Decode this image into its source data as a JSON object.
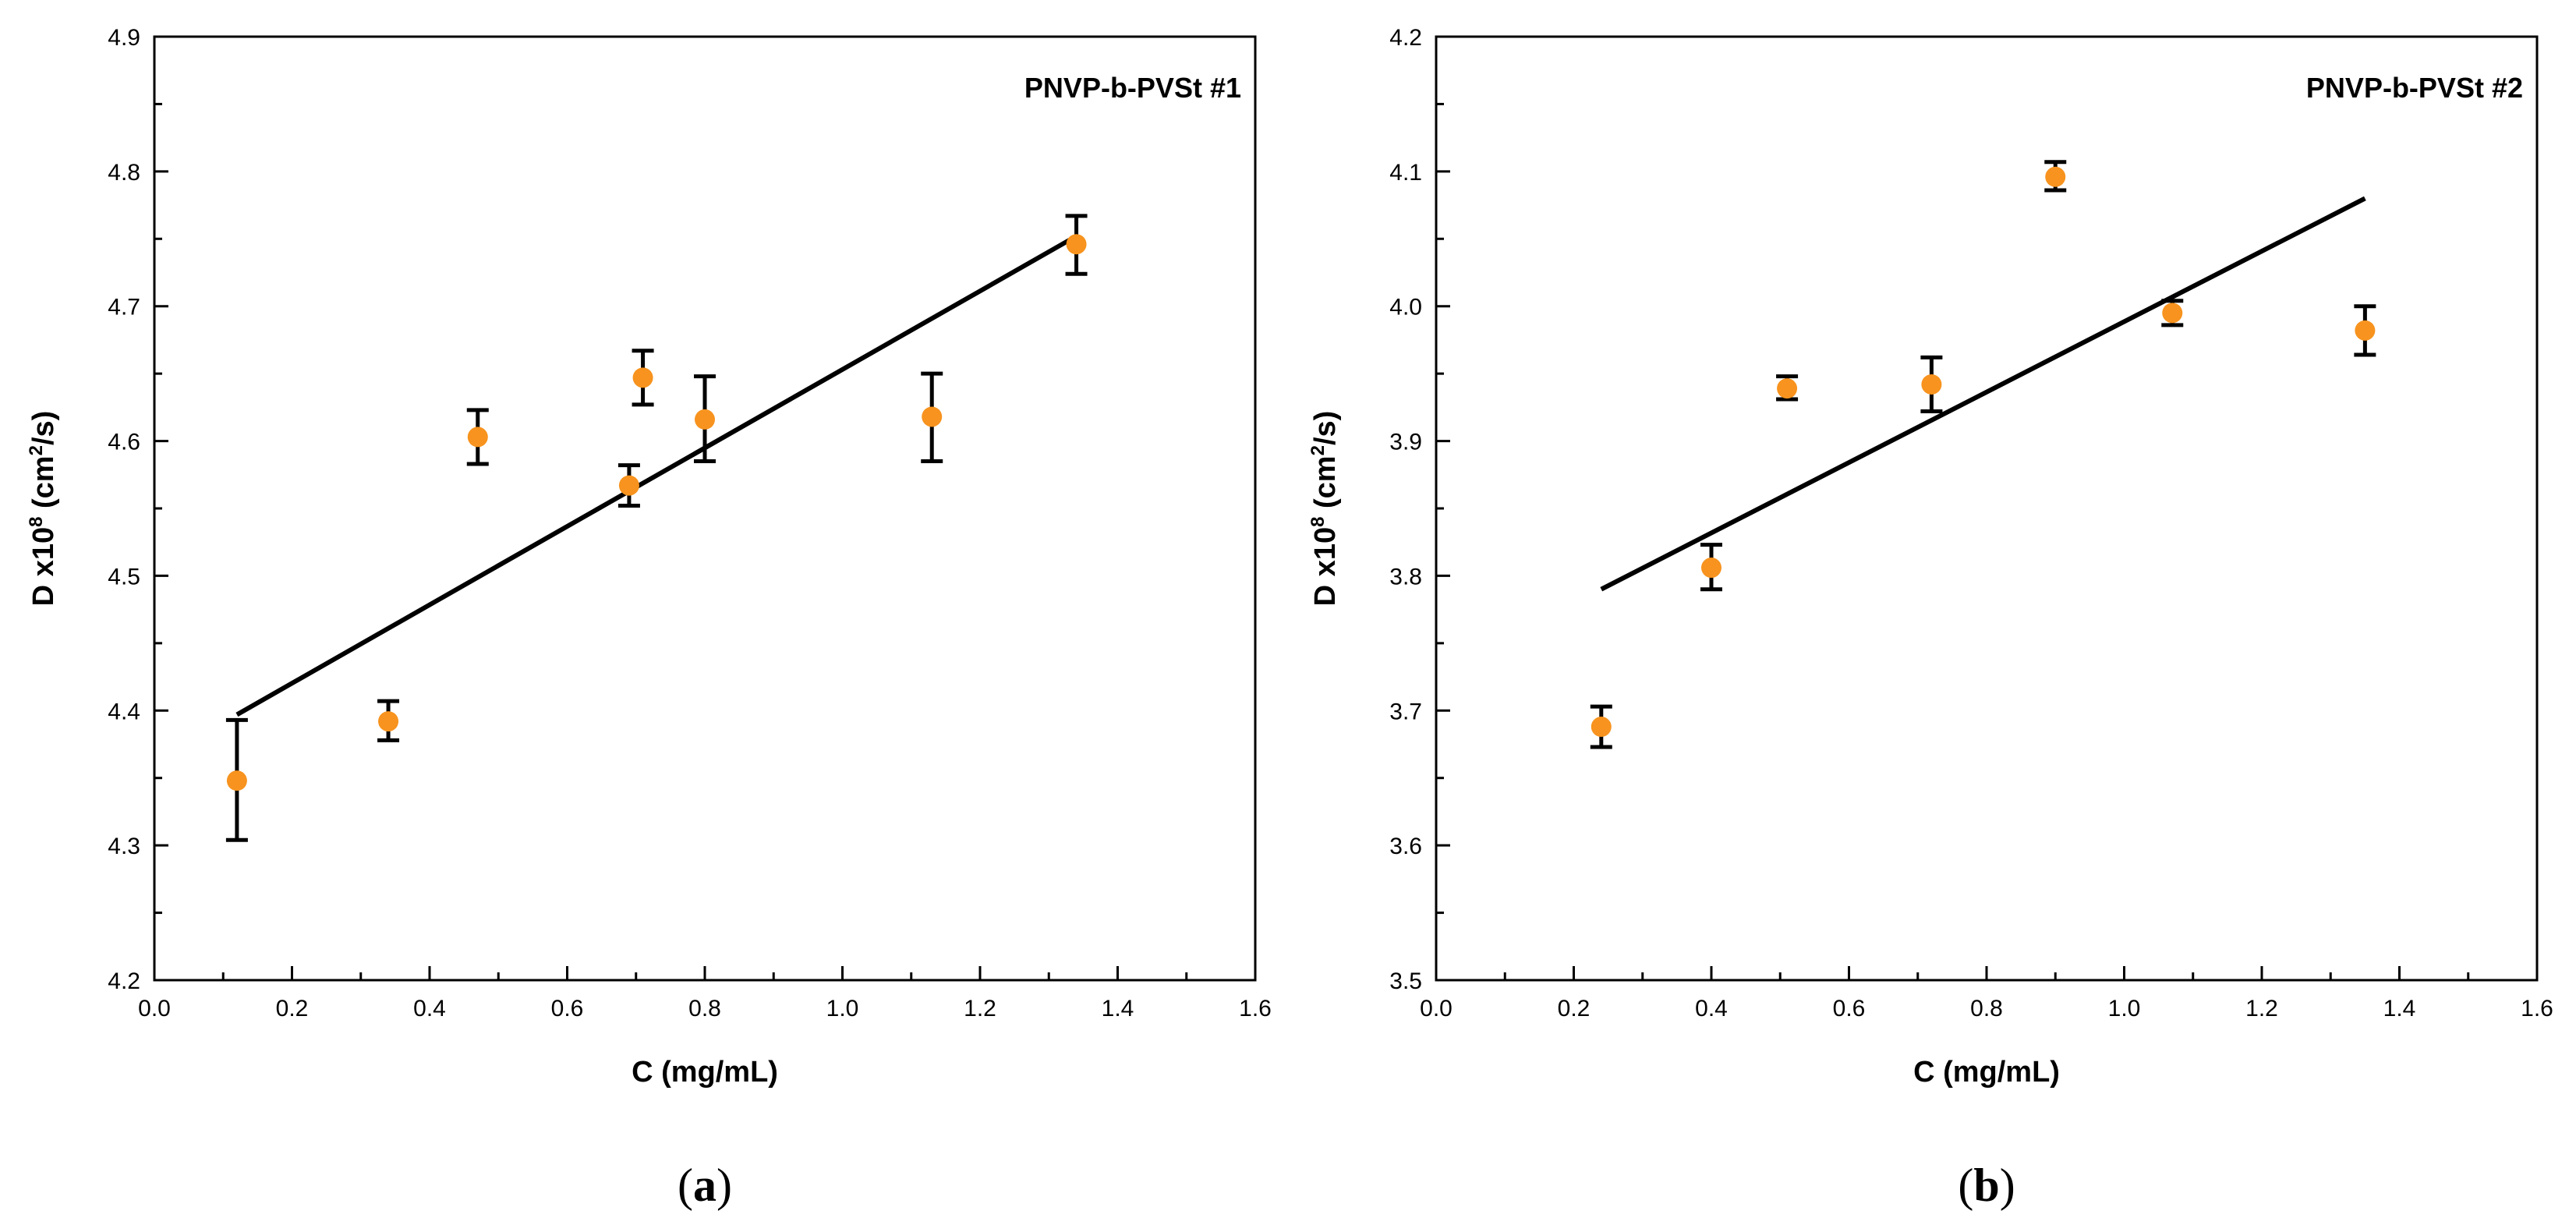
{
  "chart_data": [
    {
      "type": "scatter",
      "panel_label": "a",
      "title": "PNVP-b-PVSt #1",
      "xlabel": "C (mg/mL)",
      "ylabel": {
        "prefix": "D x10",
        "exp1": "8",
        "mid": " (cm",
        "exp2": "2",
        "suffix": "/s)"
      },
      "xlim": [
        0.0,
        1.6
      ],
      "ylim": [
        4.2,
        4.9
      ],
      "xticks": [
        "0.0",
        "0.2",
        "0.4",
        "0.6",
        "0.8",
        "1.0",
        "1.2",
        "1.4",
        "1.6"
      ],
      "yticks": [
        "4.2",
        "4.3",
        "4.4",
        "4.5",
        "4.6",
        "4.7",
        "4.8",
        "4.9"
      ],
      "points": [
        {
          "x": 0.12,
          "y": 4.348,
          "err_low": 4.304,
          "err_high": 4.393
        },
        {
          "x": 0.34,
          "y": 4.392,
          "err_low": 4.378,
          "err_high": 4.407
        },
        {
          "x": 0.47,
          "y": 4.603,
          "err_low": 4.583,
          "err_high": 4.623
        },
        {
          "x": 0.69,
          "y": 4.567,
          "err_low": 4.552,
          "err_high": 4.582
        },
        {
          "x": 0.71,
          "y": 4.647,
          "err_low": 4.627,
          "err_high": 4.667
        },
        {
          "x": 0.8,
          "y": 4.616,
          "err_low": 4.585,
          "err_high": 4.648
        },
        {
          "x": 1.13,
          "y": 4.618,
          "err_low": 4.585,
          "err_high": 4.65
        },
        {
          "x": 1.34,
          "y": 4.746,
          "err_low": 4.724,
          "err_high": 4.767
        }
      ],
      "fit_line": {
        "x": [
          0.12,
          1.34
        ],
        "y": [
          4.397,
          4.752
        ]
      },
      "marker_color": "#F7931E",
      "line_color": "#000000"
    },
    {
      "type": "scatter",
      "panel_label": "b",
      "title": "PNVP-b-PVSt #2",
      "xlabel": "C (mg/mL)",
      "ylabel": {
        "prefix": "D x10",
        "exp1": "8",
        "mid": " (cm",
        "exp2": "2",
        "suffix": "/s)"
      },
      "xlim": [
        0.0,
        1.6
      ],
      "ylim": [
        3.5,
        4.2
      ],
      "xticks": [
        "0.0",
        "0.2",
        "0.4",
        "0.6",
        "0.8",
        "1.0",
        "1.2",
        "1.4",
        "1.6"
      ],
      "yticks": [
        "3.5",
        "3.6",
        "3.7",
        "3.8",
        "3.9",
        "4.0",
        "4.1",
        "4.2"
      ],
      "points": [
        {
          "x": 0.24,
          "y": 3.688,
          "err_low": 3.673,
          "err_high": 3.703
        },
        {
          "x": 0.4,
          "y": 3.806,
          "err_low": 3.79,
          "err_high": 3.823
        },
        {
          "x": 0.51,
          "y": 3.939,
          "err_low": 3.931,
          "err_high": 3.948
        },
        {
          "x": 0.72,
          "y": 3.942,
          "err_low": 3.922,
          "err_high": 3.962
        },
        {
          "x": 0.9,
          "y": 4.096,
          "err_low": 4.086,
          "err_high": 4.107
        },
        {
          "x": 1.07,
          "y": 3.995,
          "err_low": 3.986,
          "err_high": 4.004
        },
        {
          "x": 1.35,
          "y": 3.982,
          "err_low": 3.964,
          "err_high": 4.0
        }
      ],
      "fit_line": {
        "x": [
          0.24,
          1.35
        ],
        "y": [
          3.79,
          4.08
        ]
      },
      "marker_color": "#F7931E",
      "line_color": "#000000"
    }
  ]
}
